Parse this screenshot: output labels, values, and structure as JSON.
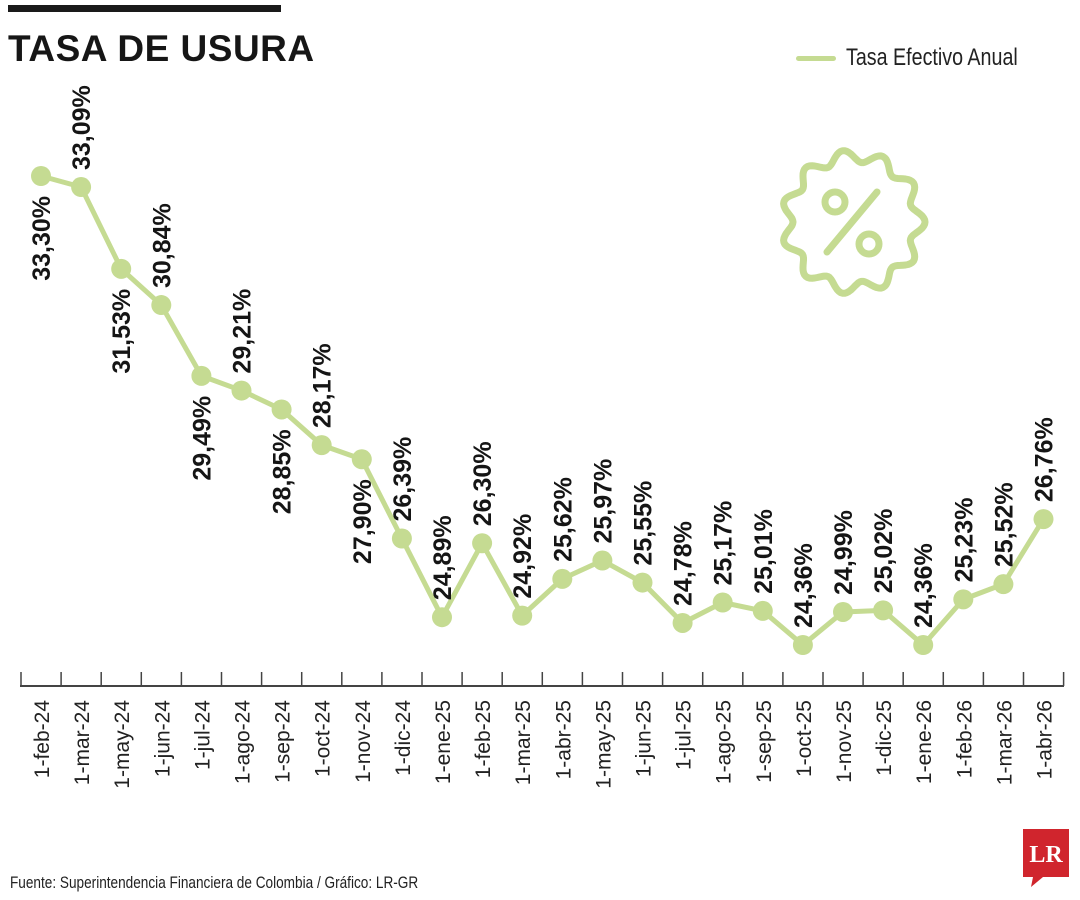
{
  "header": {
    "title": "TASA DE USURA"
  },
  "legend": {
    "label": "Tasa Efectivo Anual"
  },
  "source": "Fuente: Superintendencia Financiera de Colombia / Gráfico: LR-GR",
  "logo": {
    "text": "LR",
    "color": "#d0252d"
  },
  "icon": {
    "name": "percent-badge-icon",
    "color": "#c5db92"
  },
  "colors": {
    "series": "#c5db92",
    "axis": "#444444",
    "text": "#151515"
  },
  "chart_data": {
    "type": "line",
    "title": "TASA DE USURA",
    "categories": [
      "1-feb-24",
      "1-mar-24",
      "1-may-24",
      "1-jun-24",
      "1-jul-24",
      "1-ago-24",
      "1-sep-24",
      "1-oct-24",
      "1-nov-24",
      "1-dic-24",
      "1-ene-25",
      "1-feb-25",
      "1-mar-25",
      "1-abr-25",
      "1-may-25",
      "1-jun-25",
      "1-jul-25",
      "1-ago-25",
      "1-sep-25",
      "1-oct-25",
      "1-nov-25",
      "1-dic-25",
      "1-ene-26",
      "1-feb-26",
      "1-mar-26",
      "1-abr-26"
    ],
    "series": [
      {
        "name": "Tasa Efectivo Anual",
        "values": [
          33.3,
          33.09,
          31.53,
          30.84,
          29.49,
          29.21,
          28.85,
          28.17,
          27.9,
          26.39,
          24.89,
          26.3,
          24.92,
          25.62,
          25.97,
          25.55,
          24.78,
          25.17,
          25.01,
          24.36,
          24.99,
          25.02,
          24.36,
          25.23,
          25.52,
          26.76
        ],
        "labels": [
          "33,30%",
          "33,09%",
          "31,53%",
          "30,84%",
          "29,49%",
          "29,21%",
          "28,85%",
          "28,17%",
          "27,90%",
          "26,39%",
          "24,89%",
          "26,30%",
          "24,92%",
          "25,62%",
          "25,97%",
          "25,55%",
          "24,78%",
          "25,17%",
          "25,01%",
          "24,36%",
          "24,99%",
          "25,02%",
          "24,36%",
          "25,23%",
          "25,52%",
          "26,76%"
        ],
        "label_position": [
          "below",
          "above",
          "below",
          "above",
          "below",
          "above",
          "below",
          "above",
          "below",
          "above",
          "above",
          "above",
          "above",
          "above",
          "above",
          "above",
          "above",
          "above",
          "above",
          "above",
          "above",
          "above",
          "above",
          "above",
          "above",
          "above"
        ]
      }
    ],
    "legend": "top-right",
    "grid": false
  }
}
